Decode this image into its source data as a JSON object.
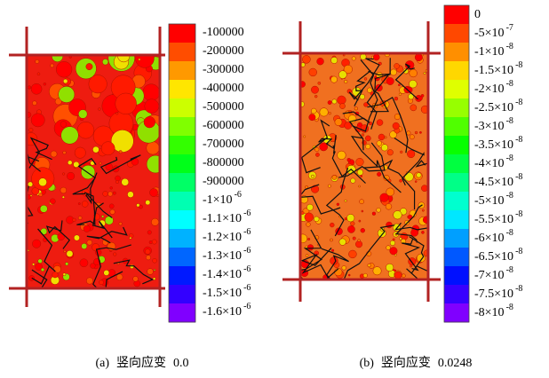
{
  "panels": [
    {
      "colorbar_labels": [
        "-100000",
        "-200000",
        "-300000",
        "-400000",
        "-500000",
        "-600000",
        "-700000",
        "-800000",
        "-900000",
        {
          "base": "-1×10",
          "exp": "-6"
        },
        {
          "base": "-1.1×10",
          "exp": "-6"
        },
        {
          "base": "-1.2×10",
          "exp": "-6"
        },
        {
          "base": "-1.3×10",
          "exp": "-6"
        },
        {
          "base": "-1.4×10",
          "exp": "-6"
        },
        {
          "base": "-1.5×10",
          "exp": "-6"
        },
        {
          "base": "-1.6×10",
          "exp": "-6"
        }
      ],
      "caption": {
        "label": "(a)",
        "text": "竖向应变",
        "value": "0.0"
      }
    },
    {
      "colorbar_labels": [
        "0",
        {
          "base": "-5×10",
          "exp": "-7"
        },
        {
          "base": "-1×10",
          "exp": "-8"
        },
        {
          "base": "-1.5×10",
          "exp": "-8"
        },
        {
          "base": "-2×10",
          "exp": "-8"
        },
        {
          "base": "-2.5×10",
          "exp": "-8"
        },
        {
          "base": "-3×10",
          "exp": "-8"
        },
        {
          "base": "-3.5×10",
          "exp": "-8"
        },
        {
          "base": "-4×10",
          "exp": "-8"
        },
        {
          "base": "-4.5×10",
          "exp": "-8"
        },
        {
          "base": "-5×10",
          "exp": "-8"
        },
        {
          "base": "-5.5×10",
          "exp": "-8"
        },
        {
          "base": "-6×10",
          "exp": "-8"
        },
        {
          "base": "-6.5×10",
          "exp": "-8"
        },
        {
          "base": "-7×10",
          "exp": "-8"
        },
        {
          "base": "-7.5×10",
          "exp": "-8"
        },
        {
          "base": "-8×10",
          "exp": "-8"
        }
      ],
      "caption": {
        "label": "(b)",
        "text": "竖向应变",
        "value": "0.0248"
      }
    }
  ]
}
